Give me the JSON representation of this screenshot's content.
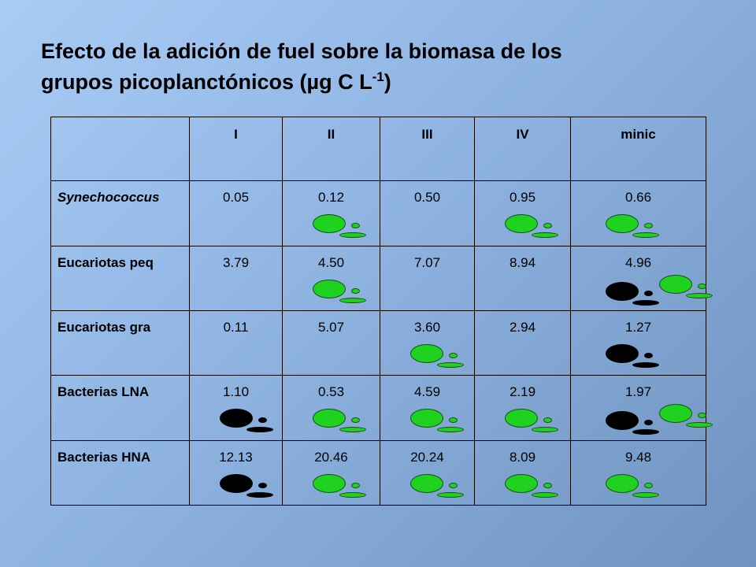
{
  "title": {
    "line1": "Efecto de la adición de fuel sobre la biomasa de los",
    "line2_main": "grupos picoplanctónicos (µg C L",
    "line2_sup": "-1",
    "line2_end": ")"
  },
  "table": {
    "columns": [
      "I",
      "II",
      "III",
      "IV",
      "minic"
    ],
    "rows": [
      {
        "label": "Synechococcus",
        "italic": true,
        "values": [
          "0.05",
          "0.12",
          "0.50",
          "0.95",
          "0.66"
        ]
      },
      {
        "label": "Eucariotas peq",
        "italic": false,
        "values": [
          "3.79",
          "4.50",
          "7.07",
          "8.94",
          "4.96"
        ]
      },
      {
        "label": "Eucariotas gra",
        "italic": false,
        "values": [
          "0.11",
          "5.07",
          "3.60",
          "2.94",
          "1.27"
        ]
      },
      {
        "label": "Bacterias  LNA",
        "italic": false,
        "values": [
          "1.10",
          "0.53",
          "4.59",
          "2.19",
          "1.97"
        ]
      },
      {
        "label": "Bacterias  HNA",
        "italic": false,
        "values": [
          "12.13",
          "20.46",
          "20.24",
          "8.09",
          "9.48"
        ]
      }
    ]
  },
  "markers": {
    "green_color": "#1fd21f",
    "black_color": "#000000",
    "cells": [
      {
        "row": 0,
        "col": 1,
        "color": "green"
      },
      {
        "row": 0,
        "col": 3,
        "color": "green"
      },
      {
        "row": 0,
        "col": 4,
        "color": "green"
      },
      {
        "row": 1,
        "col": 1,
        "color": "green"
      },
      {
        "row": 1,
        "col": 4,
        "color": "black"
      },
      {
        "row": 1,
        "col": 4,
        "color": "green"
      },
      {
        "row": 2,
        "col": 2,
        "color": "green"
      },
      {
        "row": 2,
        "col": 4,
        "color": "black"
      },
      {
        "row": 3,
        "col": 0,
        "color": "black"
      },
      {
        "row": 3,
        "col": 1,
        "color": "green"
      },
      {
        "row": 3,
        "col": 2,
        "color": "green"
      },
      {
        "row": 3,
        "col": 3,
        "color": "green"
      },
      {
        "row": 3,
        "col": 4,
        "color": "black"
      },
      {
        "row": 3,
        "col": 4,
        "color": "green"
      },
      {
        "row": 4,
        "col": 0,
        "color": "black"
      },
      {
        "row": 4,
        "col": 1,
        "color": "green"
      },
      {
        "row": 4,
        "col": 2,
        "color": "green"
      },
      {
        "row": 4,
        "col": 3,
        "color": "green"
      },
      {
        "row": 4,
        "col": 4,
        "color": "green"
      }
    ]
  }
}
